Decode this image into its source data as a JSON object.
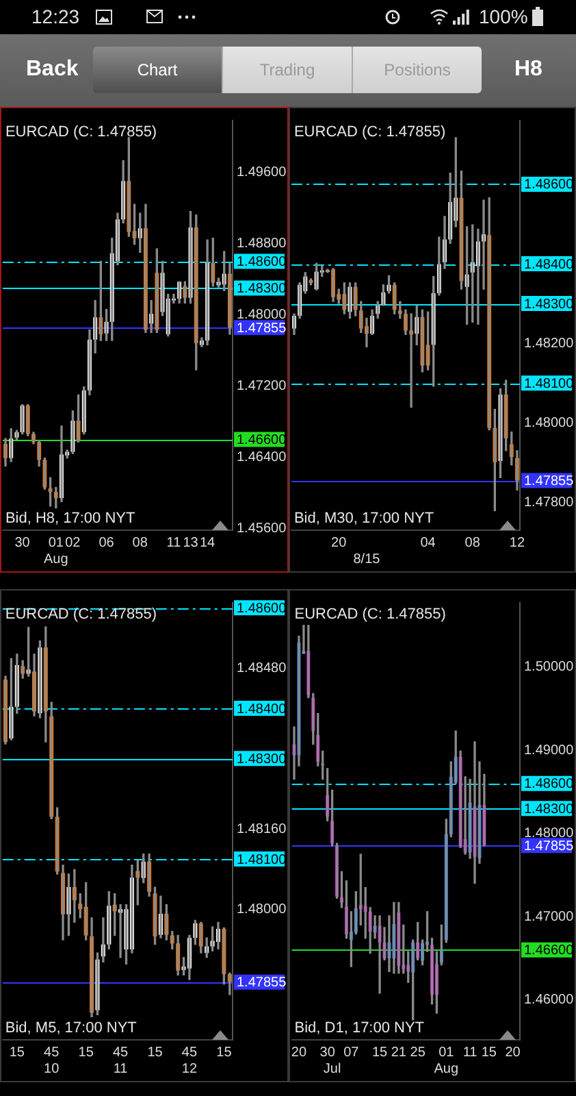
{
  "chart_data": [
    {
      "type": "other",
      "annotations": [
        "12:23",
        "100%",
        "Back",
        "Chart",
        "Trading",
        "Positions",
        "H8"
      ]
    },
    {
      "type": "candlestick",
      "title": "EURCAD (C: 1.47855)",
      "annotations": [
        "Bid, H8, 17:00 NYT"
      ],
      "color": "#8a8a8a",
      "categories": [
        null,
        null,
        null,
        "30",
        null,
        null,
        null,
        null,
        null,
        "01\nAug",
        null,
        null,
        "02",
        null,
        null,
        null,
        null,
        null,
        "06",
        null,
        null,
        null,
        null,
        null,
        "08",
        null,
        null,
        null,
        null,
        null,
        "11",
        null,
        null,
        "13",
        null,
        null,
        "14",
        null,
        null,
        null,
        null
      ],
      "ohlc": [
        [
          1.4655,
          1.4661,
          1.463,
          1.4639
        ],
        [
          1.4639,
          1.4672,
          1.4635,
          1.4661
        ],
        [
          1.4662,
          1.467,
          1.466,
          1.4668
        ],
        [
          1.4668,
          1.4699,
          1.4666,
          1.4698
        ],
        [
          1.4698,
          1.4699,
          1.4664,
          1.4666
        ],
        [
          1.4666,
          1.4668,
          1.4655,
          1.4657
        ],
        [
          1.4657,
          1.4659,
          1.463,
          1.4637
        ],
        [
          1.4637,
          1.4639,
          1.4604,
          1.4606
        ],
        [
          1.4605,
          1.4617,
          1.4585,
          1.4601
        ],
        [
          1.4601,
          1.4606,
          1.4583,
          1.4594
        ],
        [
          1.4594,
          1.4675,
          1.459,
          1.4643
        ],
        [
          1.4642,
          1.4648,
          1.4639,
          1.4646
        ],
        [
          1.4646,
          1.4692,
          1.4644,
          1.4681
        ],
        [
          1.4681,
          1.471,
          1.4657,
          1.4659
        ],
        [
          1.4668,
          1.4719,
          1.4666,
          1.4715
        ],
        [
          1.4715,
          1.4783,
          1.471,
          1.4772
        ],
        [
          1.4772,
          1.4816,
          1.4757,
          1.4797
        ],
        [
          1.4797,
          1.486,
          1.4771,
          1.4778
        ],
        [
          1.4779,
          1.4806,
          1.4771,
          1.4792
        ],
        [
          1.4792,
          1.4886,
          1.4771,
          1.4869
        ],
        [
          1.486,
          1.4914,
          1.4856,
          1.4907
        ],
        [
          1.4907,
          1.4973,
          1.4903,
          1.495
        ],
        [
          1.495,
          1.4999,
          1.4888,
          1.4893
        ],
        [
          1.4894,
          1.4924,
          1.4879,
          1.4886
        ],
        [
          1.4886,
          1.4914,
          1.487,
          1.4897
        ],
        [
          1.4897,
          1.4924,
          1.478,
          1.4783
        ],
        [
          1.479,
          1.4816,
          1.478,
          1.4801
        ],
        [
          1.4847,
          1.4874,
          1.478,
          1.4783
        ],
        [
          1.4803,
          1.486,
          1.4799,
          1.4847
        ],
        [
          1.4778,
          1.4823,
          1.4776,
          1.4818
        ],
        [
          1.4816,
          1.4823,
          1.4813,
          1.4818
        ],
        [
          1.4818,
          1.4837,
          1.4813,
          1.4837
        ],
        [
          1.4832,
          1.4837,
          1.4813,
          1.4819
        ],
        [
          1.4819,
          1.4916,
          1.4813,
          1.4898
        ],
        [
          1.4898,
          1.4912,
          1.4738,
          1.4768
        ],
        [
          1.4766,
          1.4774,
          1.4764,
          1.4771
        ],
        [
          1.4771,
          1.4884,
          1.4766,
          1.4858
        ],
        [
          1.4858,
          1.4886,
          1.4832,
          1.4836
        ],
        [
          1.4833,
          1.4841,
          1.4831,
          1.4837
        ],
        [
          1.4834,
          1.4871,
          1.4827,
          1.4846
        ],
        [
          1.4846,
          1.4858,
          1.4778,
          1.47855
        ]
      ],
      "colors": [
        "#e8740c",
        "#ffffff",
        "#ffffff",
        "#ffffff",
        "#e8740c",
        "#e8740c",
        "#e8740c",
        "#e8740c",
        "#e8740c",
        "#e8740c",
        "#ffffff",
        "#ffffff",
        "#ffffff",
        "#e8740c",
        "#ffffff",
        "#ffffff",
        "#ffffff",
        "#e8740c",
        "#ffffff",
        "#ffffff",
        "#ffffff",
        "#ffffff",
        "#e8740c",
        "#e8740c",
        "#ffffff",
        "#e8740c",
        "#ffffff",
        "#e8740c",
        "#ffffff",
        "#ffffff",
        "#ffffff",
        "#ffffff",
        "#e8740c",
        "#ffffff",
        "#e8740c",
        "#ffffff",
        "#ffffff",
        "#e8740c",
        "#ffffff",
        "#ffffff",
        "#e8740c"
      ],
      "ylim": [
        1.4558,
        1.5018
      ],
      "yticks": [
        {
          "value": 1.456,
          "label": "1.45600"
        },
        {
          "value": 1.464,
          "label": "1.46400"
        },
        {
          "value": 1.472,
          "label": "1.47200"
        },
        {
          "value": 1.48,
          "label": "1.48000"
        },
        {
          "value": 1.488,
          "label": "1.48800"
        },
        {
          "value": 1.496,
          "label": "1.49600"
        }
      ],
      "ref_lines": [
        {
          "axis": "y",
          "value": 1.486,
          "label": "1.48600",
          "color": "#00e5ff",
          "line_style": "dashed"
        },
        {
          "axis": "y",
          "value": 1.483,
          "label": "1.48300",
          "color": "#00e5ff",
          "line_style": "solid"
        },
        {
          "axis": "y",
          "value": 1.466,
          "label": "1.46600",
          "color": "#22dd22",
          "line_style": "solid"
        },
        {
          "axis": "y",
          "value": 1.47855,
          "label": "1.47855",
          "color": "#3333ff",
          "line_style": "solid"
        }
      ]
    },
    {
      "type": "candlestick",
      "title": "EURCAD (C: 1.47855)",
      "annotations": [
        "Bid, M30, 17:00 NYT"
      ],
      "color": "#8a8a8a",
      "categories": [
        null,
        null,
        null,
        null,
        null,
        null,
        null,
        null,
        "20",
        null,
        null,
        null,
        null,
        "\n8/15",
        null,
        null,
        null,
        null,
        null,
        null,
        null,
        null,
        null,
        null,
        "04",
        null,
        null,
        null,
        null,
        null,
        null,
        null,
        "08",
        null,
        null,
        null,
        null,
        null,
        null,
        null,
        "12"
      ],
      "ohlc": [
        [
          1.48237,
          1.48274,
          1.48222,
          1.48269
        ],
        [
          1.48269,
          1.48352,
          1.48263,
          1.48347
        ],
        [
          1.48331,
          1.48378,
          1.48326,
          1.48368
        ],
        [
          1.48359,
          1.48362,
          1.48347,
          1.48352
        ],
        [
          1.48336,
          1.48401,
          1.48334,
          1.4838
        ],
        [
          1.48378,
          1.48394,
          1.48368,
          1.48383
        ],
        [
          1.4838,
          1.48386,
          1.48378,
          1.48383
        ],
        [
          1.48386,
          1.48388,
          1.48305,
          1.48316
        ],
        [
          1.48324,
          1.48336,
          1.483,
          1.4831
        ],
        [
          1.48324,
          1.48352,
          1.48274,
          1.48284
        ],
        [
          1.48279,
          1.48352,
          1.48263,
          1.48342
        ],
        [
          1.48342,
          1.48352,
          1.48269,
          1.48284
        ],
        [
          1.48282,
          1.48305,
          1.48227,
          1.48237
        ],
        [
          1.48243,
          1.48263,
          1.48191,
          1.48224
        ],
        [
          1.48224,
          1.48284,
          1.48222,
          1.48269
        ],
        [
          1.48274,
          1.48305,
          1.48263,
          1.48295
        ],
        [
          1.48297,
          1.48347,
          1.48295,
          1.48328
        ],
        [
          1.48331,
          1.4837,
          1.48326,
          1.48347
        ],
        [
          1.48347,
          1.48352,
          1.48274,
          1.48284
        ],
        [
          1.48282,
          1.48305,
          1.48263,
          1.48274
        ],
        [
          1.48274,
          1.48284,
          1.48222,
          1.48232
        ],
        [
          1.48232,
          1.48274,
          1.48039,
          1.48222
        ],
        [
          1.48224,
          1.48295,
          1.48196,
          1.48266
        ],
        [
          1.48266,
          1.48284,
          1.48128,
          1.48144
        ],
        [
          1.48196,
          1.48279,
          1.48133,
          1.48144
        ],
        [
          1.48196,
          1.48368,
          1.48092,
          1.48326
        ],
        [
          1.48326,
          1.48467,
          1.48321,
          1.48399
        ],
        [
          1.48404,
          1.48519,
          1.48388,
          1.48461
        ],
        [
          1.48461,
          1.48628,
          1.48451,
          1.48555
        ],
        [
          1.48508,
          1.48717,
          1.48493,
          1.48566
        ],
        [
          1.48566,
          1.48633,
          1.48336,
          1.48357
        ],
        [
          1.48342,
          1.48493,
          1.48248,
          1.48373
        ],
        [
          1.48378,
          1.48498,
          1.48253,
          1.48404
        ],
        [
          1.48394,
          1.48487,
          1.48248,
          1.48456
        ],
        [
          1.48456,
          1.4856,
          1.48336,
          1.48474
        ],
        [
          1.48472,
          1.48566,
          1.47982,
          1.47987
        ],
        [
          1.47987,
          1.48034,
          1.47779,
          1.47901
        ],
        [
          1.47904,
          1.48086,
          1.47862,
          1.48071
        ],
        [
          1.48071,
          1.48107,
          1.4793,
          1.47961
        ],
        [
          1.47946,
          1.47977,
          1.47894,
          1.47914
        ],
        [
          1.47911,
          1.4793,
          1.47831,
          1.47855
        ]
      ],
      "colors": [
        "#ffffff",
        "#ffffff",
        "#ffffff",
        "#e8740c",
        "#ffffff",
        "#ffffff",
        "#ffffff",
        "#e8740c",
        "#e8740c",
        "#e8740c",
        "#ffffff",
        "#e8740c",
        "#e8740c",
        "#e8740c",
        "#ffffff",
        "#ffffff",
        "#ffffff",
        "#ffffff",
        "#e8740c",
        "#e8740c",
        "#e8740c",
        "#e8740c",
        "#ffffff",
        "#e8740c",
        "#e8740c",
        "#ffffff",
        "#ffffff",
        "#ffffff",
        "#ffffff",
        "#ffffff",
        "#e8740c",
        "#ffffff",
        "#ffffff",
        "#ffffff",
        "#ffffff",
        "#e8740c",
        "#e8740c",
        "#ffffff",
        "#e8740c",
        "#e8740c",
        "#e8740c"
      ],
      "ylim": [
        1.4773,
        1.4876
      ],
      "yticks": [
        {
          "value": 1.478,
          "label": "1.47800"
        },
        {
          "value": 1.48,
          "label": "1.48000"
        },
        {
          "value": 1.482,
          "label": "1.48200"
        }
      ],
      "ref_lines": [
        {
          "axis": "y",
          "value": 1.486,
          "label": "1.48600",
          "color": "#00e5ff",
          "line_style": "dashed"
        },
        {
          "axis": "y",
          "value": 1.484,
          "label": "1.48400",
          "color": "#00e5ff",
          "line_style": "dashed"
        },
        {
          "axis": "y",
          "value": 1.483,
          "label": "1.48300",
          "color": "#00e5ff",
          "line_style": "solid"
        },
        {
          "axis": "y",
          "value": 1.481,
          "label": "1.48100",
          "color": "#00e5ff",
          "line_style": "dashed"
        },
        {
          "axis": "y",
          "value": 1.47855,
          "label": "1.47855",
          "color": "#3333ff",
          "line_style": "solid"
        }
      ]
    },
    {
      "type": "candlestick",
      "title": "EURCAD (C: 1.47855)",
      "annotations": [
        "Bid, M5, 17:00 NYT"
      ],
      "color": "#8a8a8a",
      "categories": [
        null,
        null,
        "15",
        null,
        null,
        null,
        null,
        null,
        "45\n10",
        null,
        null,
        null,
        null,
        null,
        "15",
        null,
        null,
        null,
        null,
        null,
        "45\n11",
        null,
        null,
        null,
        null,
        null,
        "15",
        null,
        null,
        null,
        null,
        null,
        "45\n12",
        null,
        null,
        null,
        null,
        null,
        "15",
        null
      ],
      "ohlc": [
        [
          1.48457,
          1.48464,
          1.48329,
          1.48333
        ],
        [
          1.4834,
          1.48499,
          1.48337,
          1.48403
        ],
        [
          1.48403,
          1.48508,
          1.4839,
          1.48486
        ],
        [
          1.48484,
          1.48495,
          1.4846,
          1.48469
        ],
        [
          1.48469,
          1.48561,
          1.48464,
          1.48477
        ],
        [
          1.48473,
          1.48508,
          1.48385,
          1.48394
        ],
        [
          1.4839,
          1.48534,
          1.48381,
          1.48521
        ],
        [
          1.48521,
          1.48562,
          1.48333,
          1.48394
        ],
        [
          1.48384,
          1.48412,
          1.4818,
          1.48184
        ],
        [
          1.48184,
          1.48202,
          1.4807,
          1.48075
        ],
        [
          1.48072,
          1.48088,
          1.47939,
          1.4799
        ],
        [
          1.4799,
          1.4807,
          1.47948,
          1.48044
        ],
        [
          1.48044,
          1.48079,
          1.47974,
          1.48018
        ],
        [
          1.48011,
          1.48031,
          1.47983,
          1.48
        ],
        [
          1.48005,
          1.48053,
          1.47939,
          1.47948
        ],
        [
          1.47946,
          1.47983,
          1.47786,
          1.47794
        ],
        [
          1.47799,
          1.47913,
          1.4779,
          1.479
        ],
        [
          1.47906,
          1.47983,
          1.47895,
          1.4793
        ],
        [
          1.4793,
          1.48035,
          1.47921,
          1.48007
        ],
        [
          1.48009,
          1.48031,
          1.47948,
          1.47996
        ],
        [
          1.47993,
          1.48009,
          1.47904,
          1.48
        ],
        [
          1.4792,
          1.48009,
          1.47891,
          1.48
        ],
        [
          1.4792,
          1.48088,
          1.47913,
          1.48063
        ],
        [
          1.48076,
          1.48097,
          1.48009,
          1.48063
        ],
        [
          1.48062,
          1.4811,
          1.48053,
          1.48095
        ],
        [
          1.48095,
          1.4811,
          1.48026,
          1.48035
        ],
        [
          1.48031,
          1.48044,
          1.4793,
          1.47946
        ],
        [
          1.47949,
          1.48026,
          1.47943,
          1.47991
        ],
        [
          1.47991,
          1.48009,
          1.47939,
          1.47949
        ],
        [
          1.47948,
          1.47956,
          1.47921,
          1.47932
        ],
        [
          1.47932,
          1.47948,
          1.47869,
          1.47878
        ],
        [
          1.47879,
          1.47904,
          1.47869,
          1.47886
        ],
        [
          1.47882,
          1.47948,
          1.4786,
          1.47943
        ],
        [
          1.47943,
          1.47978,
          1.4793,
          1.47972
        ],
        [
          1.47972,
          1.47974,
          1.47913,
          1.47926
        ],
        [
          1.47913,
          1.47943,
          1.47904,
          1.47926
        ],
        [
          1.47926,
          1.47965,
          1.47917,
          1.47937
        ],
        [
          1.47935,
          1.47974,
          1.47921,
          1.47961
        ],
        [
          1.47961,
          1.47963,
          1.47851,
          1.47871
        ],
        [
          1.47871,
          1.47873,
          1.4783,
          1.47855
        ]
      ],
      "colors": [
        "#e8740c",
        "#ffffff",
        "#ffffff",
        "#e8740c",
        "#ffffff",
        "#e8740c",
        "#ffffff",
        "#e8740c",
        "#e8740c",
        "#e8740c",
        "#e8740c",
        "#ffffff",
        "#e8740c",
        "#e8740c",
        "#e8740c",
        "#e8740c",
        "#ffffff",
        "#ffffff",
        "#ffffff",
        "#e8740c",
        "#ffffff",
        "#ffffff",
        "#ffffff",
        "#e8740c",
        "#ffffff",
        "#e8740c",
        "#e8740c",
        "#ffffff",
        "#e8740c",
        "#e8740c",
        "#e8740c",
        "#ffffff",
        "#ffffff",
        "#ffffff",
        "#e8740c",
        "#ffffff",
        "#ffffff",
        "#ffffff",
        "#e8740c",
        "#e8740c"
      ],
      "ylim": [
        1.4774,
        1.4861
      ],
      "yticks": [
        {
          "value": 1.48,
          "label": "1.48000"
        },
        {
          "value": 1.4816,
          "label": "1.48160"
        },
        {
          "value": 1.4848,
          "label": "1.48480"
        }
      ],
      "ref_lines": [
        {
          "axis": "y",
          "value": 1.486,
          "label": "1.48600",
          "color": "#00e5ff",
          "line_style": "dashed"
        },
        {
          "axis": "y",
          "value": 1.484,
          "label": "1.48400",
          "color": "#00e5ff",
          "line_style": "dashed"
        },
        {
          "axis": "y",
          "value": 1.483,
          "label": "1.48300",
          "color": "#00e5ff",
          "line_style": "solid"
        },
        {
          "axis": "y",
          "value": 1.481,
          "label": "1.48100",
          "color": "#00e5ff",
          "line_style": "dashed"
        },
        {
          "axis": "y",
          "value": 1.47855,
          "label": "1.47855",
          "color": "#3333ff",
          "line_style": "solid"
        }
      ]
    },
    {
      "type": "candlestick",
      "title": "EURCAD (C: 1.47855)",
      "annotations": [
        "Bid, D1, 17:00 NYT"
      ],
      "color": "#8a8a8a",
      "categories": [
        null,
        "20",
        null,
        null,
        null,
        null,
        null,
        "30",
        "\nJul",
        null,
        null,
        null,
        "07",
        null,
        null,
        null,
        null,
        null,
        "15",
        null,
        null,
        null,
        "21",
        null,
        null,
        null,
        "25",
        null,
        null,
        null,
        null,
        null,
        "01\nAug",
        null,
        null,
        null,
        null,
        "11",
        null,
        null,
        null,
        "15",
        null,
        null,
        null,
        null,
        "20",
        null
      ],
      "ohlc": [
        [
          1.4907,
          1.4928,
          1.4865,
          1.4894
        ],
        [
          1.4894,
          1.5037,
          1.4881,
          1.5029
        ],
        [
          1.5016,
          1.505,
          1.5016,
          1.5019
        ],
        [
          1.5019,
          1.505,
          1.4963,
          1.4966
        ],
        [
          1.4963,
          1.4968,
          1.4907,
          1.4923
        ],
        [
          1.4918,
          1.4944,
          1.4881,
          1.4886
        ],
        [
          1.4883,
          1.4899,
          1.4865,
          1.4882
        ],
        [
          1.4846,
          1.4878,
          1.4815,
          1.482
        ],
        [
          1.4815,
          1.4852,
          1.4785,
          1.4788
        ],
        [
          1.4785,
          1.4788,
          1.4722,
          1.4724
        ],
        [
          1.4723,
          1.4754,
          1.4711,
          1.4717
        ],
        [
          1.4712,
          1.4743,
          1.4674,
          1.4679
        ],
        [
          1.4672,
          1.4706,
          1.464,
          1.4682
        ],
        [
          1.4681,
          1.473,
          1.4679,
          1.471
        ],
        [
          1.4714,
          1.4775,
          1.469,
          1.4709
        ],
        [
          1.4713,
          1.4735,
          1.4674,
          1.4706
        ],
        [
          1.4706,
          1.4711,
          1.4656,
          1.4682
        ],
        [
          1.4681,
          1.4701,
          1.4674,
          1.4689
        ],
        [
          1.4689,
          1.4701,
          1.4608,
          1.4669
        ],
        [
          1.4669,
          1.4687,
          1.4648,
          1.465
        ],
        [
          1.465,
          1.4701,
          1.4634,
          1.4669
        ],
        [
          1.465,
          1.4717,
          1.4632,
          1.4691
        ],
        [
          1.4705,
          1.4717,
          1.4632,
          1.4641
        ],
        [
          1.4642,
          1.469,
          1.4632,
          1.4637
        ],
        [
          1.4642,
          1.4658,
          1.4621,
          1.4634
        ],
        [
          1.4633,
          1.4672,
          1.4576,
          1.4669
        ],
        [
          1.4669,
          1.4693,
          1.4648,
          1.465
        ],
        [
          1.4647,
          1.4672,
          1.4642,
          1.4668
        ],
        [
          1.4666,
          1.4706,
          1.4658,
          1.467
        ],
        [
          1.4666,
          1.4674,
          1.4595,
          1.4606
        ],
        [
          1.4643,
          1.4658,
          1.4584,
          1.4606
        ],
        [
          1.4645,
          1.469,
          1.4642,
          1.4661
        ],
        [
          1.4672,
          1.4817,
          1.4669,
          1.4799
        ],
        [
          1.4799,
          1.4886,
          1.4796,
          1.4868
        ],
        [
          1.4861,
          1.4923,
          1.486,
          1.4892
        ],
        [
          1.4892,
          1.4899,
          1.4783,
          1.4785
        ],
        [
          1.4793,
          1.4868,
          1.4775,
          1.4777
        ],
        [
          1.4777,
          1.4865,
          1.477,
          1.4837
        ],
        [
          1.4832,
          1.491,
          1.474,
          1.4772
        ],
        [
          1.477,
          1.4886,
          1.4764,
          1.4834
        ],
        [
          1.4834,
          1.4871,
          1.4785,
          1.47855
        ],
        null,
        null,
        null,
        null,
        null,
        null,
        null
      ],
      "colors": [
        "#e020e0",
        "#2a8cff",
        "#2a8cff",
        "#e020e0",
        "#e020e0",
        "#e020e0",
        "#e020e0",
        "#e020e0",
        "#e020e0",
        "#e020e0",
        "#e020e0",
        "#e020e0",
        "#2a8cff",
        "#2a8cff",
        "#e020e0",
        "#e020e0",
        "#e020e0",
        "#2a8cff",
        "#e020e0",
        "#e020e0",
        "#2a8cff",
        "#2a8cff",
        "#e020e0",
        "#e020e0",
        "#e020e0",
        "#2a8cff",
        "#e020e0",
        "#2a8cff",
        "#2a8cff",
        "#e020e0",
        "#e020e0",
        "#2a8cff",
        "#2a8cff",
        "#2a8cff",
        "#2a8cff",
        "#e020e0",
        "#e020e0",
        "#2a8cff",
        "#e020e0",
        "#2a8cff",
        "#e020e0",
        null,
        null,
        null,
        null,
        null,
        null,
        null
      ],
      "ylim": [
        1.4552,
        1.5077
      ],
      "yticks": [
        {
          "value": 1.46,
          "label": "1.46000"
        },
        {
          "value": 1.47,
          "label": "1.47000"
        },
        {
          "value": 1.48,
          "label": "1.48000"
        },
        {
          "value": 1.49,
          "label": "1.49000"
        },
        {
          "value": 1.5,
          "label": "1.50000"
        }
      ],
      "ref_lines": [
        {
          "axis": "y",
          "value": 1.486,
          "label": "1.48600",
          "color": "#00e5ff",
          "line_style": "dashed"
        },
        {
          "axis": "y",
          "value": 1.483,
          "label": "1.48300",
          "color": "#00e5ff",
          "line_style": "solid"
        },
        {
          "axis": "y",
          "value": 1.466,
          "label": "1.46600",
          "color": "#22dd22",
          "line_style": "solid"
        },
        {
          "axis": "y",
          "value": 1.47855,
          "label": "1.47855",
          "color": "#3333ff",
          "line_style": "solid"
        }
      ]
    }
  ]
}
